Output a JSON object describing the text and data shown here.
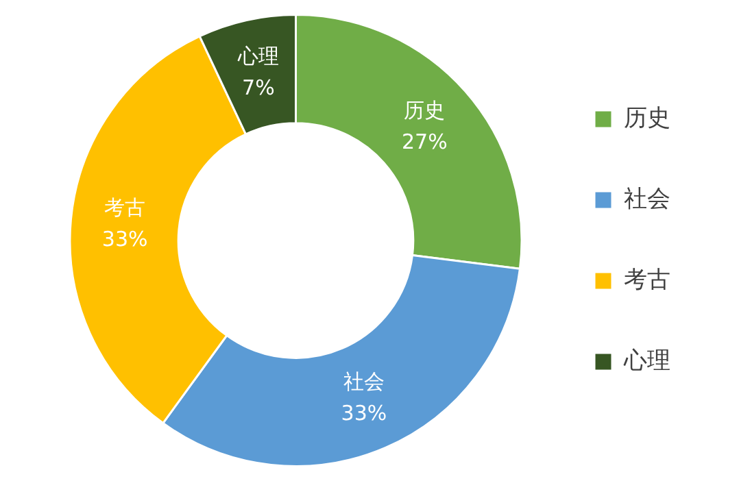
{
  "chart_data": {
    "type": "donut",
    "categories": [
      "历史",
      "社会",
      "考古",
      "心理"
    ],
    "values": [
      27,
      33,
      33,
      7
    ],
    "colors": [
      "#70ad47",
      "#5b9bd5",
      "#ffc000",
      "#375623"
    ],
    "value_labels": [
      "27%",
      "33%",
      "33%",
      "7%"
    ],
    "legend": "right"
  }
}
